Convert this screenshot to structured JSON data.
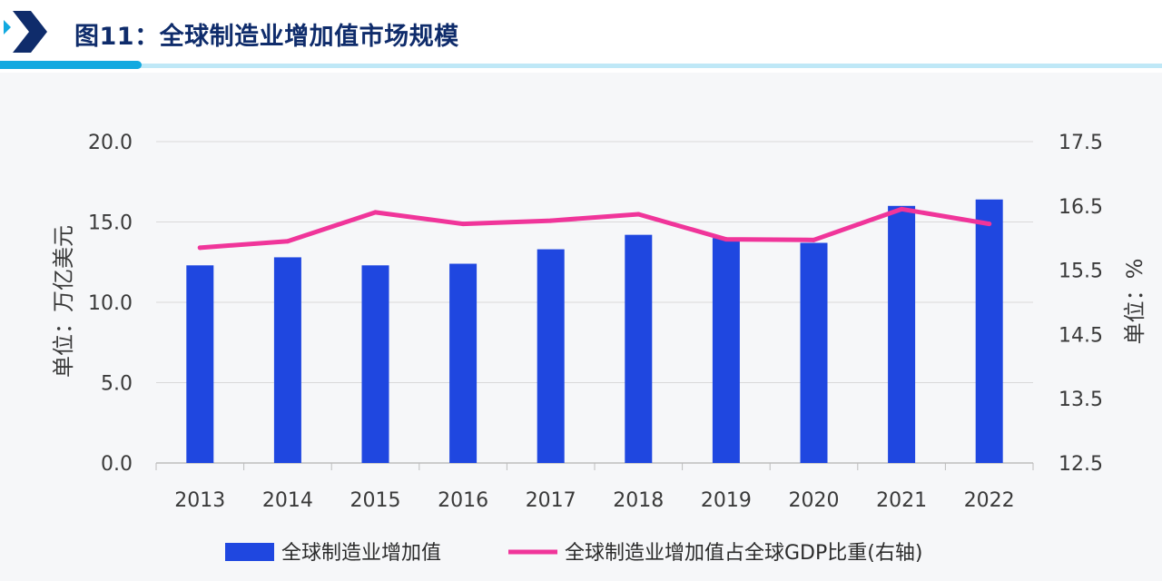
{
  "header": {
    "title": "图11：全球制造业增加值市场规模"
  },
  "colors": {
    "bar": "#1f47e0",
    "line": "#f0359a",
    "accent": "#12a9e0",
    "title": "#0f2c6b"
  },
  "chart_data": {
    "type": "bar",
    "categories": [
      "2013",
      "2014",
      "2015",
      "2016",
      "2017",
      "2018",
      "2019",
      "2020",
      "2021",
      "2022"
    ],
    "series": [
      {
        "name": "全球制造业增加值",
        "type": "bar",
        "axis": "left",
        "values": [
          12.3,
          12.8,
          12.3,
          12.4,
          13.3,
          14.2,
          14.0,
          13.7,
          16.0,
          16.4
        ]
      },
      {
        "name": "全球制造业增加值占全球GDP比重(右轴)",
        "type": "line",
        "axis": "right",
        "values": [
          15.85,
          15.95,
          16.4,
          16.22,
          16.27,
          16.37,
          15.98,
          15.97,
          16.45,
          16.22
        ]
      }
    ],
    "ylabel": "单位：万亿美元",
    "y2label": "单位：%",
    "ylim": [
      0,
      20
    ],
    "y2lim": [
      12.5,
      17.5
    ],
    "yticks": [
      "0.0",
      "5.0",
      "10.0",
      "15.0",
      "20.0"
    ],
    "y2ticks": [
      "12.5",
      "13.5",
      "14.5",
      "15.5",
      "16.5",
      "17.5"
    ],
    "grid": true,
    "legend": "bottom"
  }
}
